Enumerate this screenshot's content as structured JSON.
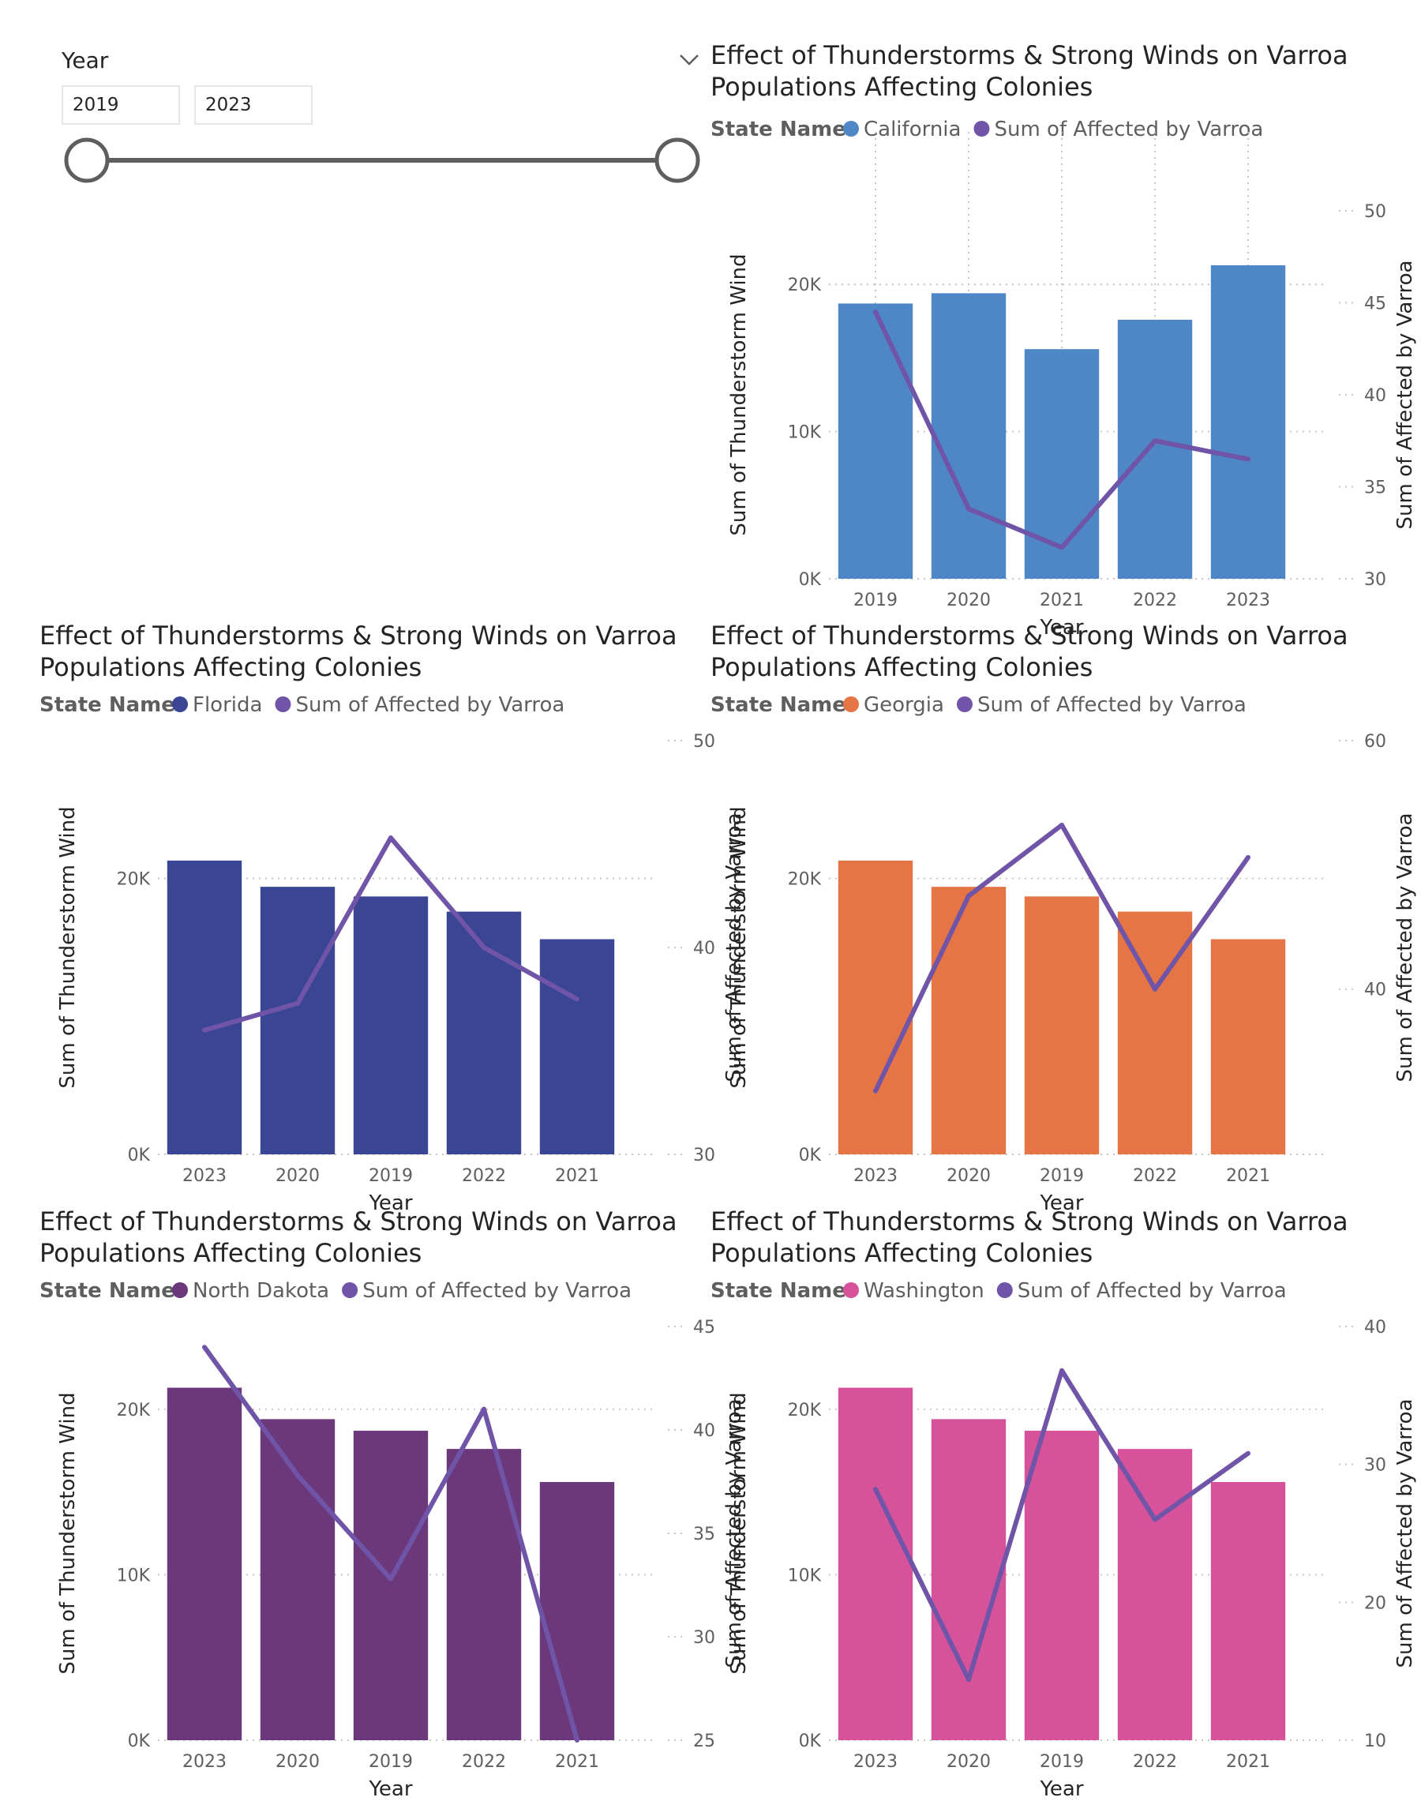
{
  "slicer": {
    "title": "Year",
    "start_value": "2019",
    "end_value": "2023",
    "range": [
      2019,
      2023
    ]
  },
  "chart_data": [
    {
      "id": "california",
      "type": "bar",
      "title_line1": "Effect of Thunderstorms & Strong Winds on Varroa",
      "title_line2": "Populations Affecting Colonies",
      "legend_title": "State Name",
      "bar_series_name": "California",
      "line_series_name": "Sum of Affected by Varroa",
      "bar_color": "#4f87c6",
      "line_color": "#7054a8",
      "categories": [
        "2019",
        "2020",
        "2021",
        "2022",
        "2023"
      ],
      "bar_values": [
        18700,
        19400,
        15600,
        17600,
        21300
      ],
      "line_values": [
        44.5,
        33.8,
        31.7,
        37.5,
        36.5
      ],
      "xlabel": "Year",
      "ylabel_left": "Sum of Thunderstorm Wind",
      "ylabel_right": "Sum of Affected by Varroa",
      "y_left_ticks": [
        "0K",
        "10K",
        "20K"
      ],
      "y_left_tick_values": [
        0,
        10000,
        20000
      ],
      "y_left_range": [
        0,
        25000
      ],
      "y_right_ticks": [
        "30",
        "35",
        "40",
        "45",
        "50"
      ],
      "y_right_tick_values": [
        30,
        35,
        40,
        45,
        50
      ],
      "y_right_range": [
        30,
        50
      ],
      "vertical_grid": true
    },
    {
      "id": "florida",
      "type": "bar",
      "title_line1": "Effect of Thunderstorms & Strong Winds on Varroa",
      "title_line2": "Populations Affecting Colonies",
      "legend_title": "State Name",
      "bar_series_name": "Florida",
      "line_series_name": "Sum of Affected by Varroa",
      "bar_color": "#3a4594",
      "line_color": "#7054a8",
      "categories": [
        "2023",
        "2020",
        "2019",
        "2022",
        "2021"
      ],
      "bar_values": [
        21300,
        19400,
        18700,
        17600,
        15600
      ],
      "line_values": [
        36.0,
        37.3,
        45.3,
        40.0,
        37.5
      ],
      "xlabel": "Year",
      "ylabel_left": "Sum of Thunderstorm Wind",
      "ylabel_right": "Sum of Affected by Varroa",
      "y_left_ticks": [
        "0K",
        "20K"
      ],
      "y_left_tick_values": [
        0,
        20000
      ],
      "y_left_range": [
        0,
        30000
      ],
      "y_right_ticks": [
        "30",
        "40",
        "50"
      ],
      "y_right_tick_values": [
        30,
        40,
        50
      ],
      "y_right_range": [
        30,
        50
      ],
      "vertical_grid": false
    },
    {
      "id": "georgia",
      "type": "bar",
      "title_line1": "Effect of Thunderstorms & Strong Winds on Varroa",
      "title_line2": "Populations Affecting Colonies",
      "legend_title": "State Name",
      "bar_series_name": "Georgia",
      "line_series_name": "Sum of Affected by Varroa",
      "bar_color": "#e67545",
      "line_color": "#7054a8",
      "categories": [
        "2023",
        "2020",
        "2019",
        "2022",
        "2021"
      ],
      "bar_values": [
        21300,
        19400,
        18700,
        17600,
        15600
      ],
      "line_values": [
        31.8,
        47.5,
        53.2,
        40.0,
        50.6
      ],
      "xlabel": "Year",
      "ylabel_left": "Sum of Thunderstorm Wind",
      "ylabel_right": "Sum of Affected by Varroa",
      "y_left_ticks": [
        "0K",
        "20K"
      ],
      "y_left_tick_values": [
        0,
        20000
      ],
      "y_left_range": [
        0,
        30000
      ],
      "y_right_ticks": [
        "40",
        "60"
      ],
      "y_right_tick_values": [
        40,
        60
      ],
      "y_right_range": [
        26.7,
        60
      ],
      "vertical_grid": false
    },
    {
      "id": "north-dakota",
      "type": "bar",
      "title_line1": "Effect of Thunderstorms & Strong Winds on Varroa",
      "title_line2": "Populations Affecting Colonies",
      "legend_title": "State Name",
      "bar_series_name": "North Dakota",
      "line_series_name": "Sum of Affected by Varroa",
      "bar_color": "#6c387c",
      "line_color": "#7054a8",
      "categories": [
        "2023",
        "2020",
        "2019",
        "2022",
        "2021"
      ],
      "bar_values": [
        21300,
        19400,
        18700,
        17600,
        15600
      ],
      "line_values": [
        44.0,
        37.8,
        32.8,
        41.0,
        25.0
      ],
      "xlabel": "Year",
      "ylabel_left": "Sum of Thunderstorm Wind",
      "ylabel_right": "Sum of Affected by Varroa",
      "y_left_ticks": [
        "0K",
        "10K",
        "20K"
      ],
      "y_left_tick_values": [
        0,
        10000,
        20000
      ],
      "y_left_range": [
        0,
        25000
      ],
      "y_right_ticks": [
        "25",
        "30",
        "35",
        "40",
        "45"
      ],
      "y_right_tick_values": [
        25,
        30,
        35,
        40,
        45
      ],
      "y_right_range": [
        25,
        45
      ],
      "vertical_grid": false
    },
    {
      "id": "washington",
      "type": "bar",
      "title_line1": "Effect of Thunderstorms & Strong Winds on Varroa",
      "title_line2": "Populations Affecting Colonies",
      "legend_title": "State Name",
      "bar_series_name": "Washington",
      "line_series_name": "Sum of Affected by Varroa",
      "bar_color": "#d6539b",
      "line_color": "#7054a8",
      "categories": [
        "2023",
        "2020",
        "2019",
        "2022",
        "2021"
      ],
      "bar_values": [
        21300,
        19400,
        18700,
        17600,
        15600
      ],
      "line_values": [
        28.2,
        14.4,
        36.8,
        26.0,
        30.8
      ],
      "xlabel": "Year",
      "ylabel_left": "Sum of Thunderstorm Wind",
      "ylabel_right": "Sum of Affected by Varroa",
      "y_left_ticks": [
        "0K",
        "10K",
        "20K"
      ],
      "y_left_tick_values": [
        0,
        10000,
        20000
      ],
      "y_left_range": [
        0,
        25000
      ],
      "y_right_ticks": [
        "10",
        "20",
        "30",
        "40"
      ],
      "y_right_tick_values": [
        10,
        20,
        30,
        40
      ],
      "y_right_range": [
        10,
        40
      ],
      "vertical_grid": false
    }
  ]
}
